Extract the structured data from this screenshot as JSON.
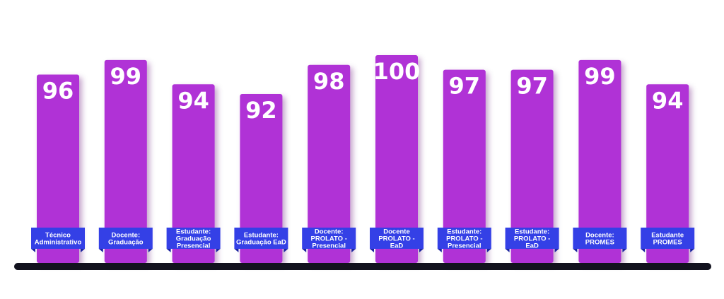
{
  "chart_data": {
    "type": "bar",
    "categories": [
      [
        "Técnico",
        "Administrativo"
      ],
      [
        "Docente:",
        "Graduação"
      ],
      [
        "Estudante:",
        "Graduação",
        "Presencial"
      ],
      [
        "Estudante:",
        "Graduação EaD"
      ],
      [
        "Docente:",
        "PROLATO -",
        "Presencial"
      ],
      [
        "Docente",
        "PROLATO -",
        "EaD"
      ],
      [
        "Estudante:",
        "PROLATO -",
        "Presencial"
      ],
      [
        "Estudante:",
        "PROLATO -",
        "EaD"
      ],
      [
        "Docente:",
        "PROMES"
      ],
      [
        "Estudante",
        "PROMES"
      ]
    ],
    "values": [
      96,
      99,
      94,
      92,
      98,
      100,
      97,
      97,
      99,
      94
    ],
    "ylim": [
      0,
      100
    ],
    "grid": false,
    "legend": "none",
    "colors": {
      "bar": "#b030d6",
      "label_bg": "#3440e6",
      "label_shadow": "#1c24a0",
      "baseline": "#12121e",
      "value_text": "#ffffff"
    }
  }
}
